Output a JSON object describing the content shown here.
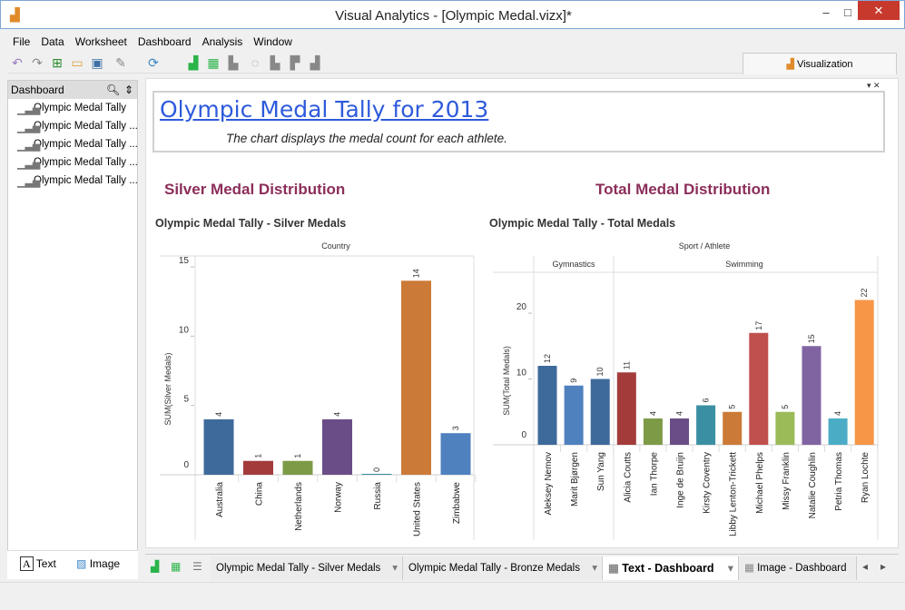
{
  "window": {
    "title": "Visual Analytics - [Olympic Medal.vizx]*",
    "minimize": "–",
    "maximize": "□",
    "close": "✕"
  },
  "menu": [
    "File",
    "Data",
    "Worksheet",
    "Dashboard",
    "Analysis",
    "Window"
  ],
  "toolbar_icons": [
    "undo-icon",
    "redo-icon",
    "new-icon",
    "open-icon",
    "save-icon",
    "brush-icon",
    "refresh-icon",
    "new-worksheet-icon",
    "new-dashboard-icon",
    "chart-icon",
    "lasso-icon",
    "sort-asc-icon",
    "sort-desc-icon",
    "group-icon"
  ],
  "visualization_tab": "Visualization",
  "left_panel": {
    "header": "Dashboard",
    "items": [
      "Olympic Medal Tally",
      "Olympic Medal Tally ...",
      "Olympic Medal Tally ...",
      "Olympic Medal Tally ...",
      "Olympic Medal Tally ..."
    ],
    "text_button": "Text",
    "image_button": "Image"
  },
  "dashboard": {
    "title": "Olympic Medal Tally for 2013",
    "subtitle": "The chart displays the medal count for each athlete.",
    "silver_section": "Silver Medal Distribution",
    "total_section": "Total Medal Distribution"
  },
  "tabs": [
    {
      "label": "Olympic Medal Tally - Silver Medals"
    },
    {
      "label": "Olympic Medal Tally - Bronze Medals"
    },
    {
      "label": "Text - Dashboard",
      "active": true
    },
    {
      "label": "Image - Dashboard"
    }
  ],
  "chart_data": [
    {
      "type": "bar",
      "title": "Olympic Medal Tally - Silver Medals",
      "column_header": "Country",
      "ylabel": "SUM(Silver Medals)",
      "ylim": [
        0,
        15
      ],
      "yticks": [
        0,
        5,
        10,
        15
      ],
      "categories": [
        "Australia",
        "China",
        "Netherlands",
        "Norway",
        "Russia",
        "United States",
        "Zimbabwe"
      ],
      "values": [
        4,
        1,
        1,
        4,
        0,
        14,
        3
      ],
      "colors": [
        "#3e6a9b",
        "#a33b3b",
        "#7d9a47",
        "#6a4d87",
        "#3b8fa3",
        "#cc7a37",
        "#4f81bf"
      ]
    },
    {
      "type": "bar",
      "title": "Olympic Medal Tally - Total Medals",
      "column_header": "Sport / Athlete",
      "ylabel": "SUM(Total Medals)",
      "ylim": [
        0,
        25
      ],
      "yticks": [
        0,
        10,
        20
      ],
      "groups": [
        {
          "name": "Gymnastics",
          "categories": [
            "Aleksey Nemov",
            "Marit Bjørgen",
            "Sun Yang"
          ],
          "values": [
            12,
            9,
            10
          ]
        },
        {
          "name": "Swimming",
          "categories": [
            "Alicia Coutts",
            "Ian Thorpe",
            "Inge de Bruijn",
            "Kirsty Coventry",
            "Libby Lenton-Trickett",
            "Michael Phelps",
            "Missy Franklin",
            "Natalie Coughlin",
            "Petria Thomas",
            "Ryan Lochte"
          ],
          "values": [
            11,
            4,
            4,
            6,
            5,
            17,
            5,
            15,
            4,
            22
          ]
        }
      ],
      "colors": [
        "#3e6a9b",
        "#4f81bf",
        "#3e6a9b",
        "#a33b3b",
        "#7d9a47",
        "#6a4d87",
        "#3b8fa3",
        "#cc7a37",
        "#c0504d",
        "#9bbb59",
        "#8064a2",
        "#4bacc6",
        "#f79646"
      ]
    }
  ]
}
